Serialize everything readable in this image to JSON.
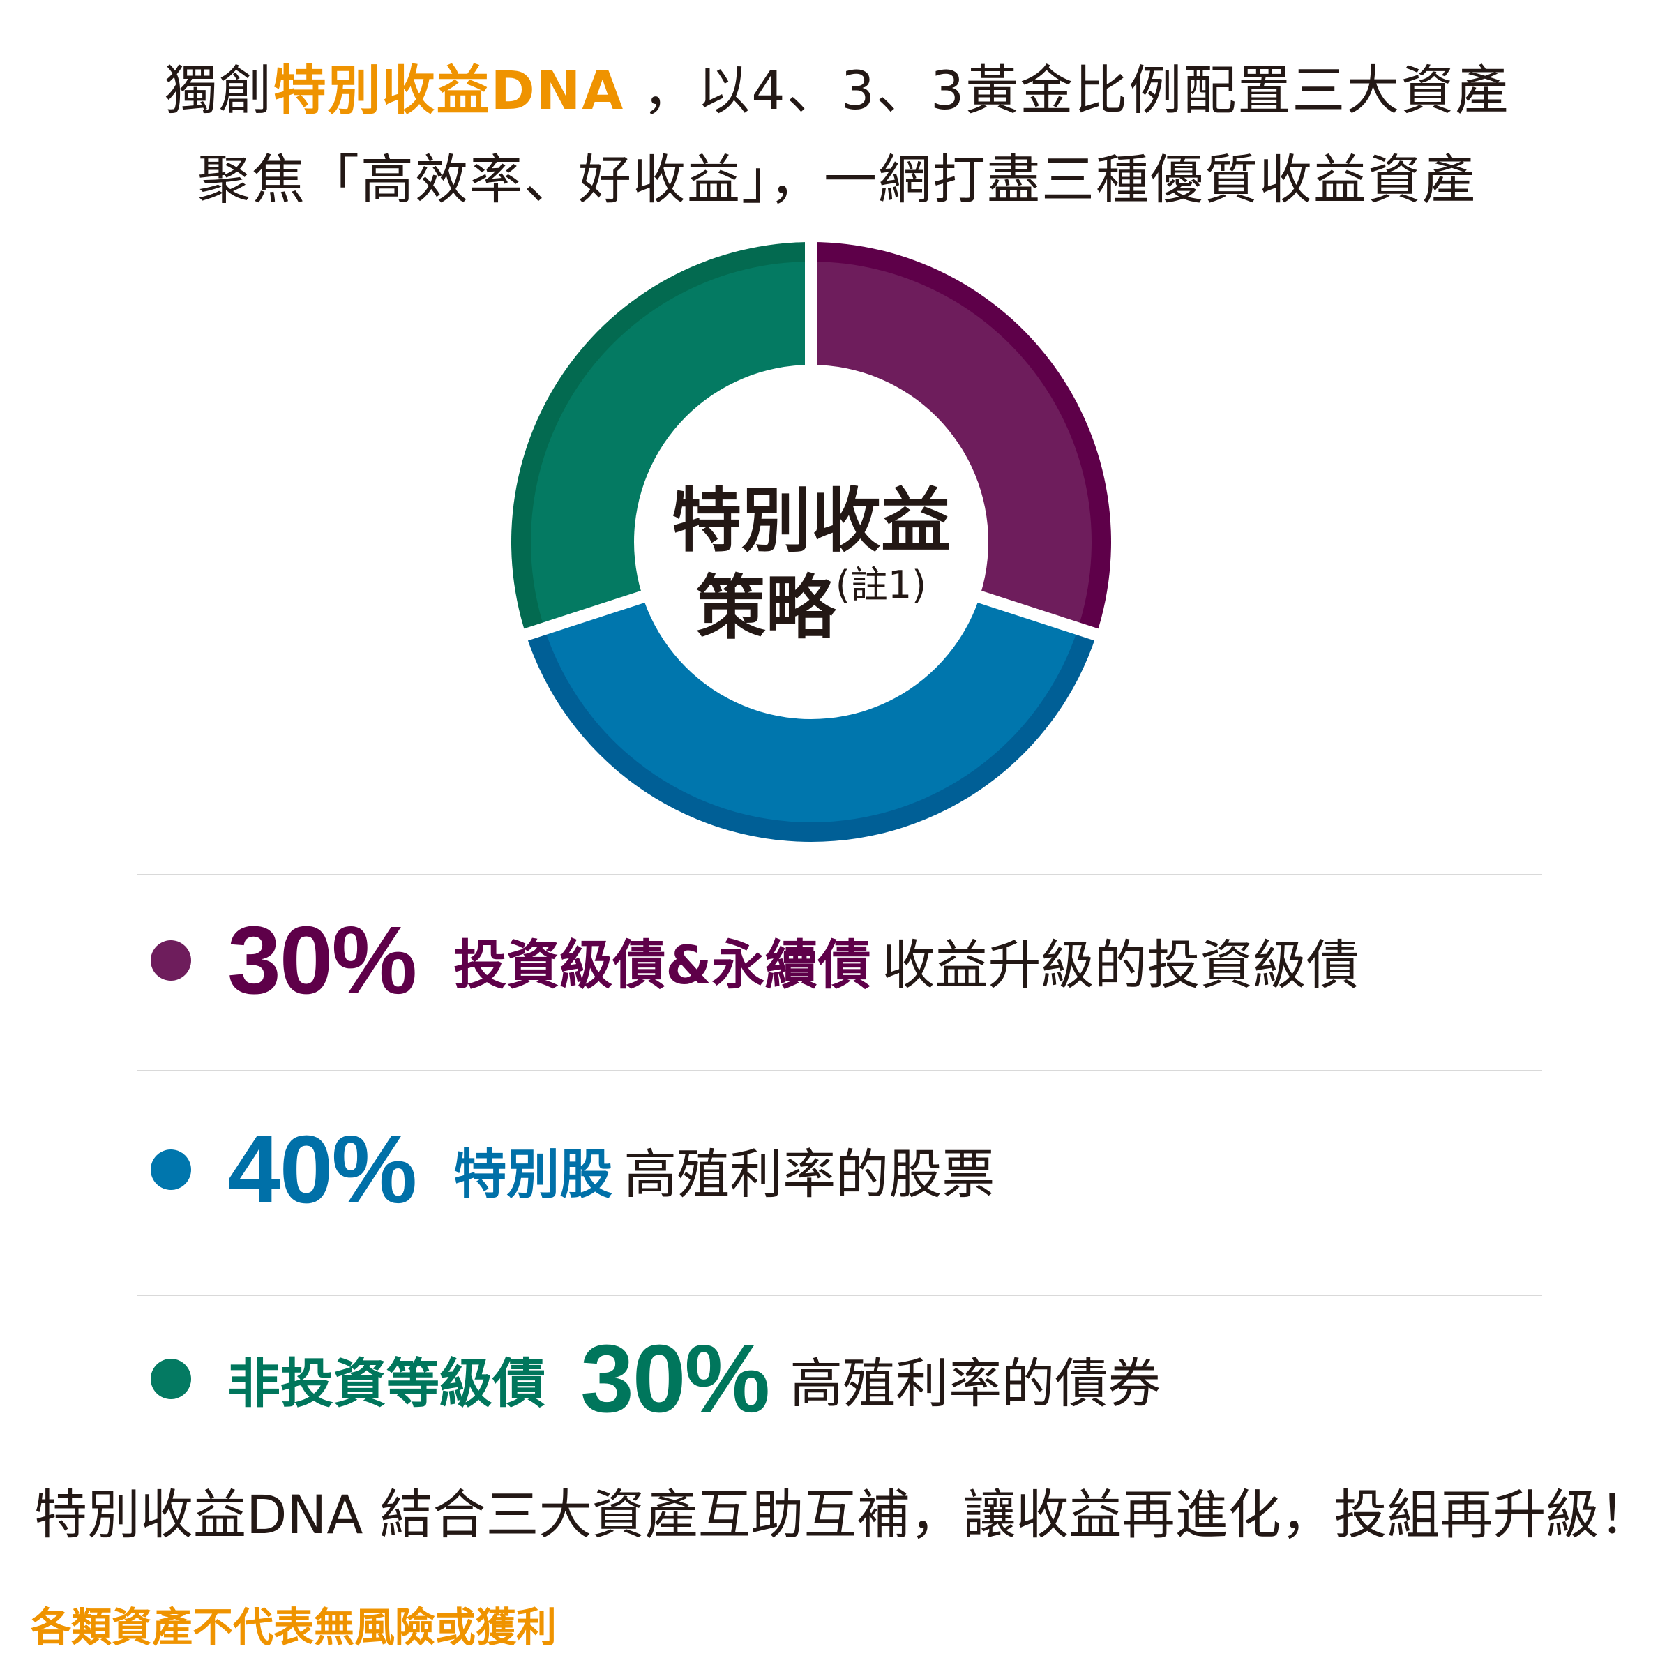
{
  "headline": {
    "line1_prefix": "獨創",
    "line1_highlight": "特別收益DNA",
    "line1_suffix": " ，以4、3、3黃金比例配置三大資產",
    "line2": "聚焦「高效率、好收益」，一網打盡三種優質收益資產"
  },
  "colors": {
    "accent": "#ef9300",
    "purple": "#5e0049",
    "blue": "#0070a8",
    "green": "#00765c",
    "text": "#231815"
  },
  "chart_data": {
    "type": "pie",
    "donut": true,
    "center_title": "特別收益",
    "center_subtitle": "策略",
    "center_note": "(註1)",
    "slices": [
      {
        "label": "投資級債&永續債",
        "value": 30,
        "color": "#6e1d5c",
        "rim": "#5e0049"
      },
      {
        "label": "特別股",
        "value": 40,
        "color": "#0076ad",
        "rim": "#005f96"
      },
      {
        "label": "非投資等級債",
        "value": 30,
        "color": "#047a62",
        "rim": "#036a50"
      }
    ]
  },
  "legend": [
    {
      "pct": "30%",
      "label": "投資級債&永續債",
      "desc": "收益升級的投資級債",
      "color": "#5e0049",
      "dot": "#6e1d5c"
    },
    {
      "pct": "40%",
      "label": "特別股",
      "desc": "高殖利率的股票",
      "color": "#0070a8",
      "dot": "#0076ad"
    },
    {
      "label": "非投資等級債",
      "pct": "30%",
      "desc": "高殖利率的債券",
      "color": "#00765c",
      "dot": "#047a62"
    }
  ],
  "bottom_text": "特別收益DNA 結合三大資產互助互補，讓收益再進化，投組再升級！",
  "footnote": "各類資產不代表無風險或獲利"
}
